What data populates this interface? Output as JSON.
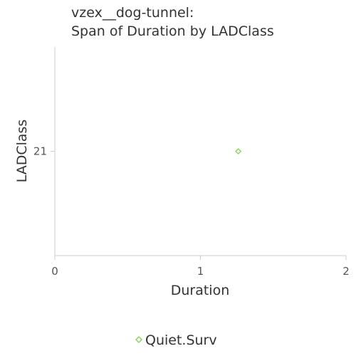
{
  "chart_data": {
    "type": "scatter",
    "title_lines": [
      "vzex__dog-tunnel:",
      "Span of Duration by LADClass"
    ],
    "xlabel": "Duration",
    "ylabel": "LADClass",
    "xlim": [
      0,
      2
    ],
    "x_ticks": [
      "0",
      "1",
      "2"
    ],
    "y_categories": [
      "21"
    ],
    "grid": false,
    "legend_position": "bottom",
    "marker": "diamond",
    "series": [
      {
        "name": "Quiet.Surv",
        "color": "#8fd16b",
        "points": [
          {
            "x": 1.26,
            "y": "21"
          }
        ]
      }
    ]
  }
}
